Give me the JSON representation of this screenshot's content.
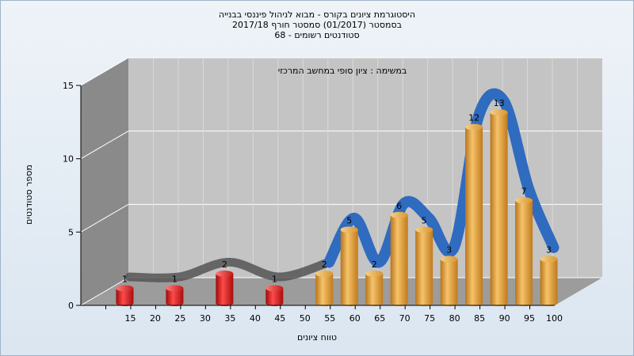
{
  "header": {
    "line1": "היסטוגרמת ציונים בקורס - מבוא לניהול פיננסי בבנייה",
    "line2": "בסמסטר  (01/2017)  סמסטר חורף  2017/18",
    "line3": "סטודנטים רשומים - 68"
  },
  "chart_data": {
    "type": "bar",
    "subtype": "3d-cylinder-with-smooth-trend",
    "annotation": "במשימה : ציון סופי במחשב המרכזי",
    "xlabel": "טווח ציונים",
    "ylabel": "מספר סטודנטים",
    "ylim": [
      0,
      15
    ],
    "yticks": [
      "0",
      "5",
      "10",
      "15"
    ],
    "xticks": [
      "15",
      "20",
      "25",
      "30",
      "35",
      "40",
      "45",
      "50",
      "55",
      "60",
      "65",
      "70",
      "75",
      "80",
      "85",
      "90",
      "95",
      "100"
    ],
    "grid": true,
    "categories": [
      "15",
      "25",
      "35",
      "45",
      "55",
      "60",
      "65",
      "70",
      "75",
      "80",
      "85",
      "90",
      "95",
      "100"
    ],
    "values": [
      1,
      1,
      2,
      1,
      2,
      5,
      2,
      6,
      5,
      3,
      12,
      13,
      7,
      3
    ],
    "data_labels": [
      "1",
      "1",
      "2",
      "1",
      "2",
      "5",
      "2",
      "6",
      "5",
      "3",
      "12",
      "13",
      "7",
      "3"
    ],
    "colors": {
      "fail": "#e01818",
      "pass": "#e8a030",
      "trend_low": "#555555",
      "trend_high": "#2f6bbf",
      "wall": "#c4c4c4",
      "side_wall": "#8a8a8a",
      "floor": "#9c9c9c"
    },
    "fail_threshold": 55
  }
}
